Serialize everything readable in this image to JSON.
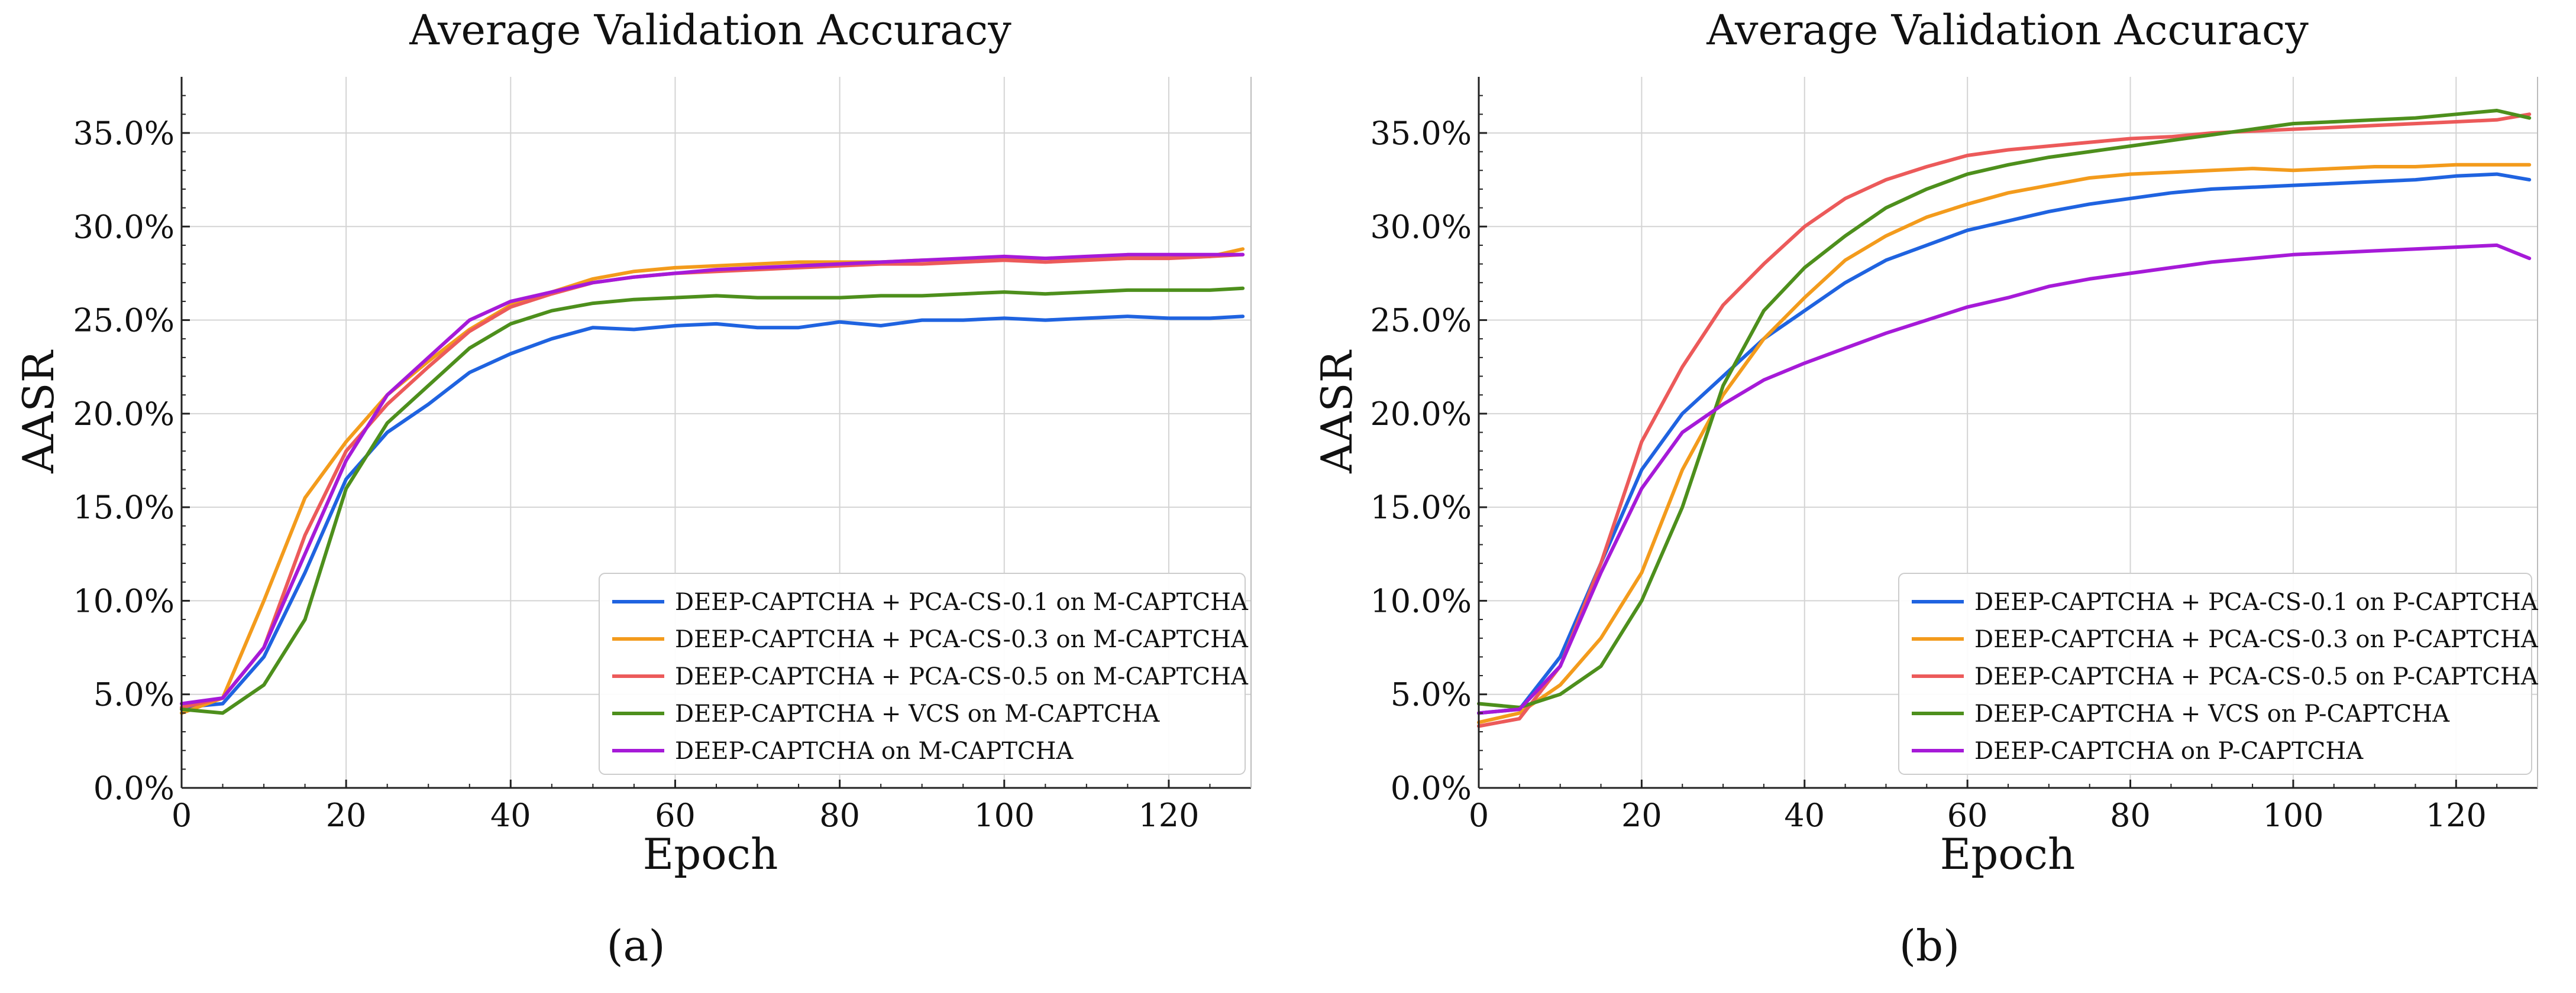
{
  "chart_data": [
    {
      "type": "line",
      "title": "Average Validation Accuracy",
      "xlabel": "Epoch",
      "ylabel": "AASR",
      "xlim": [
        0,
        130
      ],
      "ylim": [
        0,
        0.38
      ],
      "x_ticks": [
        0,
        20,
        40,
        60,
        80,
        100,
        120
      ],
      "x_tick_labels": [
        "0",
        "20",
        "40",
        "60",
        "80",
        "100",
        "120"
      ],
      "y_ticks": [
        0,
        0.05,
        0.1,
        0.15,
        0.2,
        0.25,
        0.3,
        0.35
      ],
      "y_tick_labels": [
        "0.0%",
        "5.0%",
        "10.0%",
        "15.0%",
        "20.0%",
        "25.0%",
        "30.0%",
        "35.0%"
      ],
      "grid": true,
      "legend_position": "lower-right",
      "caption": "(a)",
      "series": [
        {
          "name": "DEEP-CAPTCHA + PCA-CS-0.1 on M-CAPTCHA",
          "color": "#1f63e0",
          "x": [
            0,
            5,
            10,
            15,
            20,
            25,
            30,
            35,
            40,
            45,
            50,
            55,
            60,
            65,
            70,
            75,
            80,
            85,
            90,
            95,
            100,
            105,
            110,
            115,
            120,
            125,
            129
          ],
          "y": [
            0.043,
            0.045,
            0.07,
            0.115,
            0.165,
            0.19,
            0.205,
            0.222,
            0.232,
            0.24,
            0.246,
            0.245,
            0.247,
            0.248,
            0.246,
            0.246,
            0.249,
            0.247,
            0.25,
            0.25,
            0.251,
            0.25,
            0.251,
            0.252,
            0.251,
            0.251,
            0.252
          ]
        },
        {
          "name": "DEEP-CAPTCHA + PCA-CS-0.3 on M-CAPTCHA",
          "color": "#f39b1c",
          "x": [
            0,
            5,
            10,
            15,
            20,
            25,
            30,
            35,
            40,
            45,
            50,
            55,
            60,
            65,
            70,
            75,
            80,
            85,
            90,
            95,
            100,
            105,
            110,
            115,
            120,
            125,
            129
          ],
          "y": [
            0.04,
            0.048,
            0.1,
            0.155,
            0.185,
            0.21,
            0.228,
            0.245,
            0.258,
            0.265,
            0.272,
            0.276,
            0.278,
            0.279,
            0.28,
            0.281,
            0.281,
            0.281,
            0.282,
            0.282,
            0.283,
            0.283,
            0.283,
            0.284,
            0.284,
            0.284,
            0.288
          ]
        },
        {
          "name": "DEEP-CAPTCHA + PCA-CS-0.5 on M-CAPTCHA",
          "color": "#ec5a5a",
          "x": [
            0,
            5,
            10,
            15,
            20,
            25,
            30,
            35,
            40,
            45,
            50,
            55,
            60,
            65,
            70,
            75,
            80,
            85,
            90,
            95,
            100,
            105,
            110,
            115,
            120,
            125,
            129
          ],
          "y": [
            0.043,
            0.048,
            0.075,
            0.135,
            0.18,
            0.205,
            0.225,
            0.244,
            0.257,
            0.264,
            0.27,
            0.273,
            0.275,
            0.276,
            0.277,
            0.278,
            0.279,
            0.28,
            0.28,
            0.281,
            0.282,
            0.281,
            0.282,
            0.283,
            0.283,
            0.284,
            0.285
          ]
        },
        {
          "name": "DEEP-CAPTCHA + VCS on M-CAPTCHA",
          "color": "#4d8f1c",
          "x": [
            0,
            5,
            10,
            15,
            20,
            25,
            30,
            35,
            40,
            45,
            50,
            55,
            60,
            65,
            70,
            75,
            80,
            85,
            90,
            95,
            100,
            105,
            110,
            115,
            120,
            125,
            129
          ],
          "y": [
            0.042,
            0.04,
            0.055,
            0.09,
            0.16,
            0.195,
            0.215,
            0.235,
            0.248,
            0.255,
            0.259,
            0.261,
            0.262,
            0.263,
            0.262,
            0.262,
            0.262,
            0.263,
            0.263,
            0.264,
            0.265,
            0.264,
            0.265,
            0.266,
            0.266,
            0.266,
            0.267
          ]
        },
        {
          "name": "DEEP-CAPTCHA on M-CAPTCHA",
          "color": "#a61ad8",
          "x": [
            0,
            5,
            10,
            15,
            20,
            25,
            30,
            35,
            40,
            45,
            50,
            55,
            60,
            65,
            70,
            75,
            80,
            85,
            90,
            95,
            100,
            105,
            110,
            115,
            120,
            125,
            129
          ],
          "y": [
            0.045,
            0.048,
            0.075,
            0.125,
            0.175,
            0.21,
            0.23,
            0.25,
            0.26,
            0.265,
            0.27,
            0.273,
            0.275,
            0.277,
            0.278,
            0.279,
            0.28,
            0.281,
            0.282,
            0.283,
            0.284,
            0.283,
            0.284,
            0.285,
            0.285,
            0.285,
            0.285
          ]
        }
      ]
    },
    {
      "type": "line",
      "title": "Average Validation Accuracy",
      "xlabel": "Epoch",
      "ylabel": "AASR",
      "xlim": [
        0,
        130
      ],
      "ylim": [
        0,
        0.38
      ],
      "x_ticks": [
        0,
        20,
        40,
        60,
        80,
        100,
        120
      ],
      "x_tick_labels": [
        "0",
        "20",
        "40",
        "60",
        "80",
        "100",
        "120"
      ],
      "y_ticks": [
        0,
        0.05,
        0.1,
        0.15,
        0.2,
        0.25,
        0.3,
        0.35
      ],
      "y_tick_labels": [
        "0.0%",
        "5.0%",
        "10.0%",
        "15.0%",
        "20.0%",
        "25.0%",
        "30.0%",
        "35.0%"
      ],
      "grid": true,
      "legend_position": "lower-right",
      "caption": "(b)",
      "series": [
        {
          "name": "DEEP-CAPTCHA + PCA-CS-0.1 on P-CAPTCHA",
          "color": "#1f63e0",
          "x": [
            0,
            5,
            10,
            15,
            20,
            25,
            30,
            35,
            40,
            45,
            50,
            55,
            60,
            65,
            70,
            75,
            80,
            85,
            90,
            95,
            100,
            105,
            110,
            115,
            120,
            125,
            129
          ],
          "y": [
            0.04,
            0.042,
            0.07,
            0.12,
            0.17,
            0.2,
            0.22,
            0.24,
            0.255,
            0.27,
            0.282,
            0.29,
            0.298,
            0.303,
            0.308,
            0.312,
            0.315,
            0.318,
            0.32,
            0.321,
            0.322,
            0.323,
            0.324,
            0.325,
            0.327,
            0.328,
            0.325
          ]
        },
        {
          "name": "DEEP-CAPTCHA + PCA-CS-0.3 on P-CAPTCHA",
          "color": "#f39b1c",
          "x": [
            0,
            5,
            10,
            15,
            20,
            25,
            30,
            35,
            40,
            45,
            50,
            55,
            60,
            65,
            70,
            75,
            80,
            85,
            90,
            95,
            100,
            105,
            110,
            115,
            120,
            125,
            129
          ],
          "y": [
            0.035,
            0.04,
            0.055,
            0.08,
            0.115,
            0.17,
            0.21,
            0.24,
            0.262,
            0.282,
            0.295,
            0.305,
            0.312,
            0.318,
            0.322,
            0.326,
            0.328,
            0.329,
            0.33,
            0.331,
            0.33,
            0.331,
            0.332,
            0.332,
            0.333,
            0.333,
            0.333
          ]
        },
        {
          "name": "DEEP-CAPTCHA + PCA-CS-0.5 on P-CAPTCHA",
          "color": "#ec5a5a",
          "x": [
            0,
            5,
            10,
            15,
            20,
            25,
            30,
            35,
            40,
            45,
            50,
            55,
            60,
            65,
            70,
            75,
            80,
            85,
            90,
            95,
            100,
            105,
            110,
            115,
            120,
            125,
            129
          ],
          "y": [
            0.033,
            0.037,
            0.065,
            0.12,
            0.185,
            0.225,
            0.258,
            0.28,
            0.3,
            0.315,
            0.325,
            0.332,
            0.338,
            0.341,
            0.343,
            0.345,
            0.347,
            0.348,
            0.35,
            0.351,
            0.352,
            0.353,
            0.354,
            0.355,
            0.356,
            0.357,
            0.36
          ]
        },
        {
          "name": "DEEP-CAPTCHA + VCS on P-CAPTCHA",
          "color": "#4d8f1c",
          "x": [
            0,
            5,
            10,
            15,
            20,
            25,
            30,
            35,
            40,
            45,
            50,
            55,
            60,
            65,
            70,
            75,
            80,
            85,
            90,
            95,
            100,
            105,
            110,
            115,
            120,
            125,
            129
          ],
          "y": [
            0.045,
            0.043,
            0.05,
            0.065,
            0.1,
            0.15,
            0.215,
            0.255,
            0.278,
            0.295,
            0.31,
            0.32,
            0.328,
            0.333,
            0.337,
            0.34,
            0.343,
            0.346,
            0.349,
            0.352,
            0.355,
            0.356,
            0.357,
            0.358,
            0.36,
            0.362,
            0.358
          ]
        },
        {
          "name": "DEEP-CAPTCHA on P-CAPTCHA",
          "color": "#a61ad8",
          "x": [
            0,
            5,
            10,
            15,
            20,
            25,
            30,
            35,
            40,
            45,
            50,
            55,
            60,
            65,
            70,
            75,
            80,
            85,
            90,
            95,
            100,
            105,
            110,
            115,
            120,
            125,
            129
          ],
          "y": [
            0.04,
            0.042,
            0.065,
            0.115,
            0.16,
            0.19,
            0.205,
            0.218,
            0.227,
            0.235,
            0.243,
            0.25,
            0.257,
            0.262,
            0.268,
            0.272,
            0.275,
            0.278,
            0.281,
            0.283,
            0.285,
            0.286,
            0.287,
            0.288,
            0.289,
            0.29,
            0.283
          ]
        }
      ]
    }
  ]
}
